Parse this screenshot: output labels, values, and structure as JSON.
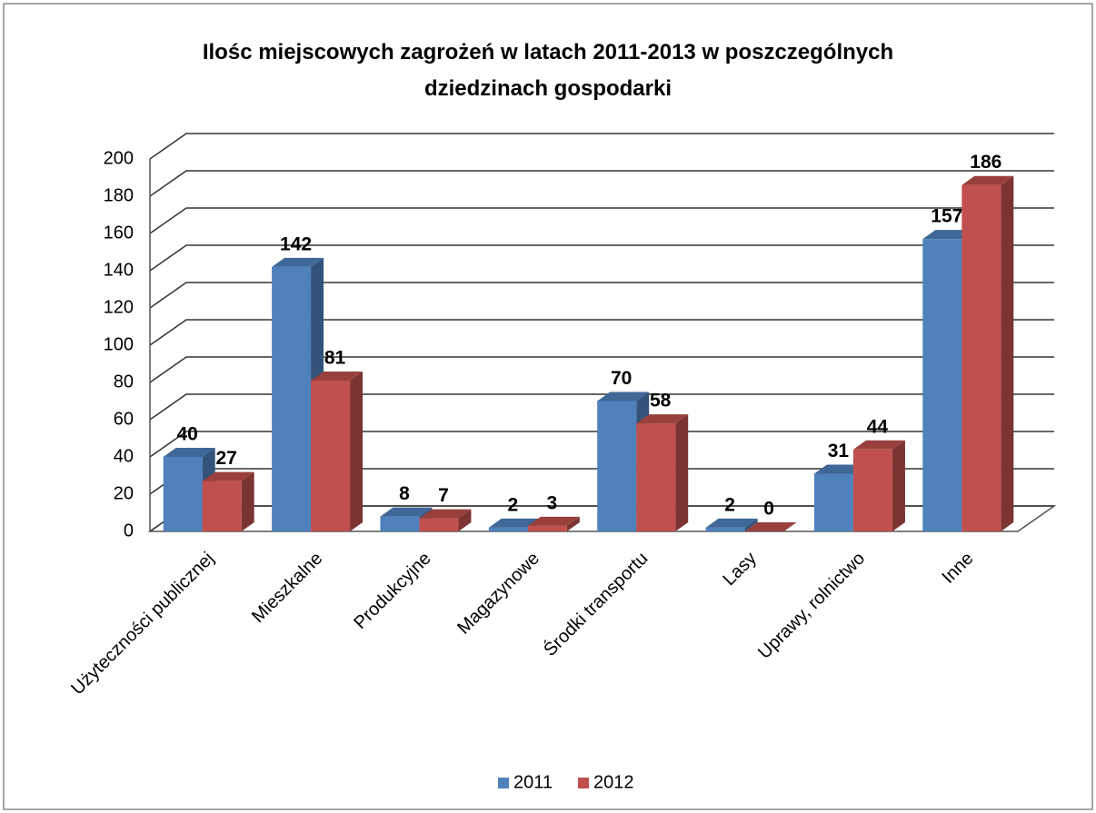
{
  "chart_data": {
    "type": "bar3d",
    "title": "Ilośc miejscowych zagrożeń w latach 2011-2013 w poszczególnych dziedzinach gospodarki",
    "categories": [
      "Użyteczności publicznej",
      "Mieszkalne",
      "Produkcyjne",
      "Magazynowe",
      "Środki transportu",
      "Lasy",
      "Uprawy, rolnictwo",
      "Inne"
    ],
    "series": [
      {
        "name": "2011",
        "color": "#4f81bd",
        "values": [
          40,
          142,
          8,
          2,
          70,
          2,
          31,
          157
        ]
      },
      {
        "name": "2012",
        "color": "#c0504d",
        "values": [
          27,
          81,
          7,
          3,
          58,
          0,
          44,
          186
        ]
      }
    ],
    "ylim": [
      0,
      200
    ],
    "yticks": [
      0,
      20,
      40,
      60,
      80,
      100,
      120,
      140,
      160,
      180,
      200
    ],
    "grid": true,
    "legend": "bottom"
  }
}
